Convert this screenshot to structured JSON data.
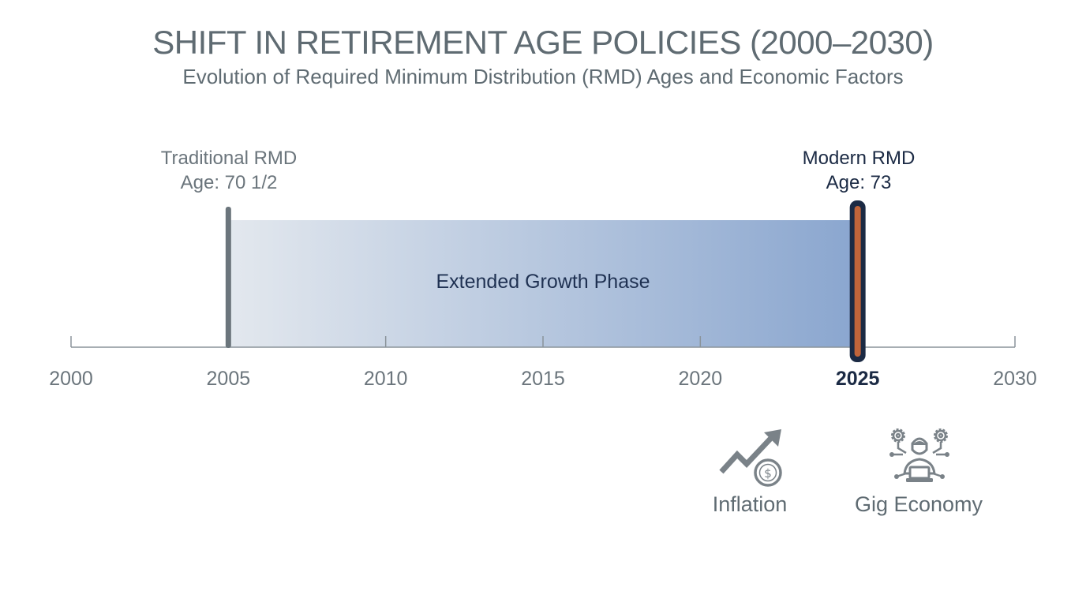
{
  "header": {
    "title": "SHIFT IN RETIREMENT AGE POLICIES (2000–2030)",
    "subtitle": "Evolution of Required Minimum Distribution (RMD) Ages and Economic Factors"
  },
  "timeline": {
    "start_year": 2000,
    "end_year": 2030,
    "ticks": [
      "2000",
      "2005",
      "2010",
      "2015",
      "2020",
      "2025",
      "2030"
    ],
    "highlight_tick": "2025"
  },
  "markers": {
    "traditional": {
      "year": 2005,
      "line1": "Traditional RMD",
      "line2": "Age: 70 1/2",
      "color": "#6b757c"
    },
    "modern": {
      "year": 2025,
      "line1": "Modern RMD",
      "line2": "Age: 73",
      "color": "#1b2a44",
      "accent": "#c0643a"
    }
  },
  "phase": {
    "label": "Extended Growth Phase",
    "start_year": 2005,
    "end_year": 2025,
    "color_start": "#e3e8ee",
    "color_end": "#8aa6cf"
  },
  "factors": [
    {
      "label": "Inflation",
      "icon": "inflation-chart-icon"
    },
    {
      "label": "Gig Economy",
      "icon": "gig-worker-icon"
    }
  ]
}
